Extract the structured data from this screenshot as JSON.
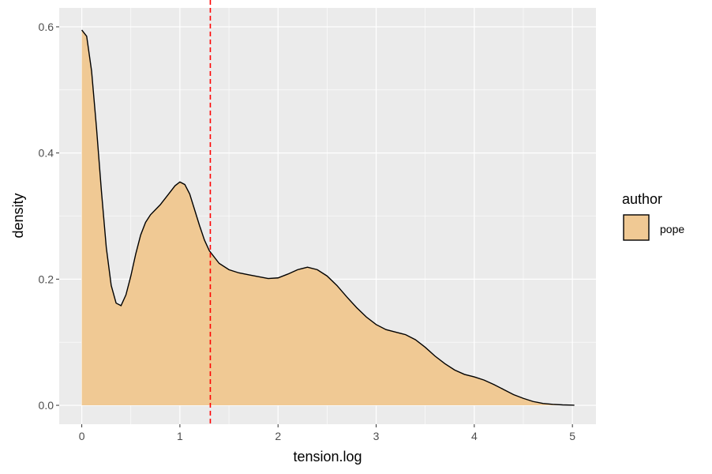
{
  "chart_data": {
    "type": "area",
    "xlabel": "tension.log",
    "ylabel": "density",
    "xlim": [
      -0.23,
      5.24
    ],
    "ylim": [
      -0.03,
      0.63
    ],
    "x_ticks": [
      0,
      1,
      2,
      3,
      4,
      5
    ],
    "y_ticks": [
      0.0,
      0.2,
      0.4,
      0.6
    ],
    "x_tick_labels": [
      "0",
      "1",
      "2",
      "3",
      "4",
      "5"
    ],
    "y_tick_labels": [
      "0.0",
      "0.2",
      "0.4",
      "0.6"
    ],
    "grid": true,
    "legend": {
      "title": "author",
      "position": "right",
      "entries": [
        "pope"
      ]
    },
    "series": [
      {
        "name": "pope",
        "fill": "#f0c994",
        "x": [
          0.0,
          0.05,
          0.1,
          0.15,
          0.2,
          0.25,
          0.3,
          0.35,
          0.4,
          0.45,
          0.5,
          0.55,
          0.6,
          0.65,
          0.7,
          0.75,
          0.8,
          0.85,
          0.9,
          0.95,
          1.0,
          1.05,
          1.1,
          1.15,
          1.2,
          1.25,
          1.3,
          1.4,
          1.5,
          1.6,
          1.7,
          1.8,
          1.9,
          2.0,
          2.1,
          2.2,
          2.3,
          2.4,
          2.5,
          2.6,
          2.7,
          2.8,
          2.9,
          3.0,
          3.1,
          3.2,
          3.3,
          3.4,
          3.5,
          3.6,
          3.7,
          3.8,
          3.9,
          4.0,
          4.1,
          4.2,
          4.3,
          4.4,
          4.5,
          4.6,
          4.7,
          4.8,
          4.9,
          5.0,
          5.02
        ],
        "y": [
          0.595,
          0.585,
          0.53,
          0.44,
          0.34,
          0.25,
          0.19,
          0.162,
          0.158,
          0.175,
          0.205,
          0.24,
          0.27,
          0.29,
          0.302,
          0.31,
          0.318,
          0.328,
          0.338,
          0.348,
          0.354,
          0.35,
          0.335,
          0.31,
          0.285,
          0.262,
          0.245,
          0.225,
          0.215,
          0.21,
          0.207,
          0.204,
          0.201,
          0.202,
          0.208,
          0.215,
          0.219,
          0.215,
          0.205,
          0.19,
          0.172,
          0.155,
          0.14,
          0.128,
          0.12,
          0.116,
          0.112,
          0.104,
          0.092,
          0.078,
          0.066,
          0.056,
          0.049,
          0.045,
          0.04,
          0.033,
          0.025,
          0.017,
          0.011,
          0.006,
          0.003,
          0.0015,
          0.0007,
          0.0003,
          0.0002
        ]
      }
    ],
    "reference_line": {
      "x": 1.31,
      "color": "#ff0000",
      "style": "dashed"
    }
  },
  "colors": {
    "panel_background": "#ebebeb",
    "grid_major": "#ffffff",
    "fill": "#f0c994",
    "outline": "#000000",
    "reference_line": "#ff0000"
  }
}
